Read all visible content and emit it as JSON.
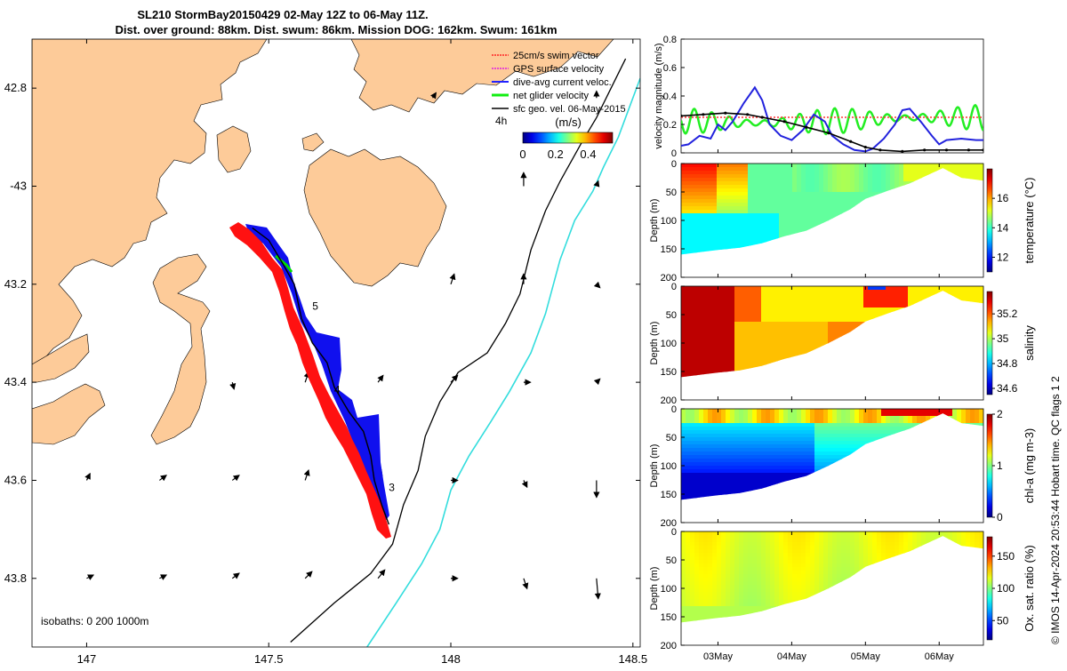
{
  "title_line1": "SL210 StormBay20150429 02-May 12Z to 06-May 11Z.",
  "title_line2": "Dist. over ground: 88km. Dist. swum: 86km. Mission DOG: 162km. Swum: 161km",
  "stamp": "© IMOS 14-Apr-2024 20:53:44 Hobart time. QC flags 1  2",
  "chart_data": [
    {
      "type": "map",
      "name": "glider track map",
      "xlim": [
        146.85,
        148.52
      ],
      "ylim": [
        -43.94,
        -42.7
      ],
      "x_ticks": [
        147,
        147.5,
        148,
        148.5
      ],
      "x_tick_labels": [
        "147",
        "147.5",
        "148",
        "148.5"
      ],
      "y_ticks": [
        -42.8,
        -43,
        -43.2,
        -43.4,
        -43.6,
        -43.8
      ],
      "y_tick_labels": [
        "42.8",
        "-43",
        "43.2",
        "43.4",
        "43.6",
        "43.8"
      ],
      "legend": [
        "25cm/s swim vector",
        "GPS surface velocity",
        "dive-avg current veloc.",
        "net glider velocity",
        "sfc geo. vel. 06-May-2015"
      ],
      "legend_scale_label": "4h",
      "colorbar": {
        "label": "(m/s)",
        "range": [
          0,
          0.55
        ],
        "ticks": [
          0,
          0.2,
          0.4
        ],
        "tick_labels": [
          "0",
          "0.2",
          "0.4"
        ]
      },
      "isobaths_label": "isobaths: 0   200  1000m",
      "track": [
        [
          147.455,
          -43.085
        ],
        [
          147.5,
          -43.11
        ],
        [
          147.54,
          -43.16
        ],
        [
          147.57,
          -43.2
        ],
        [
          147.59,
          -43.27
        ],
        [
          147.62,
          -43.32
        ],
        [
          147.66,
          -43.36
        ],
        [
          147.68,
          -43.41
        ],
        [
          147.72,
          -43.46
        ],
        [
          147.76,
          -43.5
        ],
        [
          147.78,
          -43.55
        ],
        [
          147.79,
          -43.6
        ],
        [
          147.81,
          -43.65
        ],
        [
          147.83,
          -43.69
        ]
      ],
      "day_markers": [
        {
          "label": "5",
          "lon": 147.61,
          "lat": -43.245
        },
        {
          "label": "4",
          "lon": 147.67,
          "lat": -43.415
        },
        {
          "label": "3",
          "lon": 147.82,
          "lat": -43.615
        }
      ],
      "isobath_200": [
        [
          147.56,
          -43.93
        ],
        [
          147.68,
          -43.85
        ],
        [
          147.78,
          -43.79
        ],
        [
          147.84,
          -43.73
        ],
        [
          147.87,
          -43.65
        ],
        [
          147.91,
          -43.58
        ],
        [
          147.93,
          -43.51
        ],
        [
          147.97,
          -43.44
        ],
        [
          148.02,
          -43.38
        ],
        [
          148.1,
          -43.34
        ],
        [
          148.15,
          -43.28
        ],
        [
          148.19,
          -43.22
        ],
        [
          148.22,
          -43.13
        ],
        [
          148.26,
          -43.05
        ],
        [
          148.3,
          -42.99
        ],
        [
          148.33,
          -42.95
        ],
        [
          148.36,
          -42.91
        ],
        [
          148.4,
          -42.86
        ],
        [
          148.44,
          -42.8
        ],
        [
          148.48,
          -42.74
        ]
      ],
      "isobath_1000": [
        [
          147.77,
          -43.94
        ],
        [
          147.85,
          -43.85
        ],
        [
          147.92,
          -43.77
        ],
        [
          147.97,
          -43.7
        ],
        [
          148.0,
          -43.62
        ],
        [
          148.05,
          -43.55
        ],
        [
          148.11,
          -43.48
        ],
        [
          148.16,
          -43.42
        ],
        [
          148.22,
          -43.34
        ],
        [
          148.26,
          -43.26
        ],
        [
          148.3,
          -43.15
        ],
        [
          148.34,
          -43.07
        ],
        [
          148.39,
          -43.01
        ],
        [
          148.42,
          -42.96
        ],
        [
          148.46,
          -42.9
        ],
        [
          148.49,
          -42.84
        ],
        [
          148.52,
          -42.78
        ]
      ],
      "geo_arrows": [
        {
          "lon": 147.0,
          "lat": -43.8,
          "u": 0.02,
          "v": 0.01
        },
        {
          "lon": 147.2,
          "lat": -43.8,
          "u": 0.02,
          "v": 0.01
        },
        {
          "lon": 147.4,
          "lat": -43.8,
          "u": 0.02,
          "v": 0.015
        },
        {
          "lon": 147.6,
          "lat": -43.8,
          "u": 0.02,
          "v": 0.02
        },
        {
          "lon": 147.8,
          "lat": -43.8,
          "u": 0.02,
          "v": 0.025
        },
        {
          "lon": 148.0,
          "lat": -43.8,
          "u": 0.02,
          "v": 0.0
        },
        {
          "lon": 148.2,
          "lat": -43.8,
          "u": 0.01,
          "v": -0.03
        },
        {
          "lon": 148.4,
          "lat": -43.8,
          "u": 0.005,
          "v": -0.06
        },
        {
          "lon": 147.0,
          "lat": -43.6,
          "u": 0.01,
          "v": 0.02
        },
        {
          "lon": 147.2,
          "lat": -43.6,
          "u": 0.02,
          "v": 0.015
        },
        {
          "lon": 147.4,
          "lat": -43.6,
          "u": 0.02,
          "v": 0.015
        },
        {
          "lon": 147.6,
          "lat": -43.6,
          "u": 0.01,
          "v": 0.03
        },
        {
          "lon": 147.8,
          "lat": -43.6,
          "u": 0.01,
          "v": 0.03
        },
        {
          "lon": 148.0,
          "lat": -43.6,
          "u": 0.02,
          "v": 0.0
        },
        {
          "lon": 148.2,
          "lat": -43.6,
          "u": 0.01,
          "v": -0.02
        },
        {
          "lon": 148.4,
          "lat": -43.6,
          "u": 0.0,
          "v": -0.05
        },
        {
          "lon": 147.4,
          "lat": -43.4,
          "u": 0.005,
          "v": -0.02
        },
        {
          "lon": 147.6,
          "lat": -43.4,
          "u": 0.01,
          "v": 0.03
        },
        {
          "lon": 147.8,
          "lat": -43.4,
          "u": 0.015,
          "v": 0.02
        },
        {
          "lon": 148.0,
          "lat": -43.4,
          "u": 0.02,
          "v": 0.02
        },
        {
          "lon": 148.2,
          "lat": -43.4,
          "u": 0.02,
          "v": 0.0
        },
        {
          "lon": 148.4,
          "lat": -43.4,
          "u": 0.01,
          "v": 0.01
        },
        {
          "lon": 148.0,
          "lat": -43.2,
          "u": 0.01,
          "v": 0.03
        },
        {
          "lon": 148.2,
          "lat": -43.2,
          "u": 0.0,
          "v": 0.03
        },
        {
          "lon": 148.4,
          "lat": -43.2,
          "u": 0.01,
          "v": -0.01
        },
        {
          "lon": 147.95,
          "lat": -42.82,
          "u": 0.01,
          "v": 0.015
        },
        {
          "lon": 148.2,
          "lat": -43.0,
          "u": 0.0,
          "v": 0.04
        },
        {
          "lon": 148.4,
          "lat": -43.0,
          "u": 0.005,
          "v": 0.015
        },
        {
          "lon": 148.4,
          "lat": -42.82,
          "u": 0.0,
          "v": 0.02
        }
      ]
    },
    {
      "type": "line",
      "name": "velocity magnitude",
      "ylabel": "velocity magnitude (m/s)",
      "ylim": [
        0,
        0.8
      ],
      "y_ticks": [
        0,
        0.2,
        0.4,
        0.6,
        0.8
      ],
      "y_tick_labels": [
        "0",
        "0.2",
        "0.4",
        "0.6",
        "0.8"
      ],
      "xlim": [
        2.5,
        6.6
      ],
      "series": [
        {
          "name": "25cm/s swim vector",
          "color": "#ff3333",
          "x": [
            2.5,
            6.6
          ],
          "y": [
            0.25,
            0.25
          ]
        },
        {
          "name": "dive-avg current veloc.",
          "color": "#2222dd",
          "x": [
            2.5,
            2.6,
            2.75,
            2.9,
            3.0,
            3.1,
            3.2,
            3.35,
            3.5,
            3.6,
            3.7,
            3.85,
            4.0,
            4.15,
            4.3,
            4.45,
            4.55,
            4.7,
            4.85,
            5.0,
            5.1,
            5.25,
            5.4,
            5.5,
            5.6,
            5.75,
            5.9,
            6.0,
            6.1,
            6.3,
            6.5,
            6.6
          ],
          "y": [
            0.05,
            0.06,
            0.12,
            0.1,
            0.2,
            0.16,
            0.22,
            0.35,
            0.46,
            0.37,
            0.2,
            0.12,
            0.09,
            0.16,
            0.27,
            0.22,
            0.12,
            0.06,
            0.02,
            0.01,
            0.03,
            0.1,
            0.2,
            0.3,
            0.31,
            0.22,
            0.12,
            0.06,
            0.09,
            0.1,
            0.09,
            0.09
          ]
        },
        {
          "name": "sfc geo. vel. 06-May-2015",
          "color": "#000000",
          "x": [
            2.5,
            2.8,
            3.1,
            3.4,
            3.6,
            3.9,
            4.2,
            4.5,
            4.8,
            5.0,
            5.2,
            5.5,
            5.8,
            6.1,
            6.4,
            6.6
          ],
          "y": [
            0.26,
            0.27,
            0.28,
            0.27,
            0.25,
            0.22,
            0.18,
            0.14,
            0.08,
            0.04,
            0.02,
            0.01,
            0.02,
            0.02,
            0.02,
            0.02
          ]
        }
      ]
    },
    {
      "type": "heatmap",
      "name": "temperature",
      "ylabel": "Depth (m)",
      "colorbar_label": "temperature (°C)",
      "clim": [
        11,
        18
      ],
      "c_ticks": [
        12,
        14,
        16
      ],
      "c_tick_labels": [
        "12",
        "14",
        "16"
      ],
      "y_ticks": [
        0,
        50,
        100,
        150,
        200
      ],
      "y_tick_labels": [
        "0",
        "50",
        "100",
        "150",
        "200"
      ]
    },
    {
      "type": "heatmap",
      "name": "salinity",
      "ylabel": "Depth (m)",
      "colorbar_label": "salinity",
      "clim": [
        34.55,
        35.38
      ],
      "c_ticks": [
        34.6,
        34.8,
        35,
        35.2
      ],
      "c_tick_labels": [
        "34.6",
        "34.8",
        "35",
        "35.2"
      ],
      "y_ticks": [
        0,
        50,
        100,
        150,
        200
      ],
      "y_tick_labels": [
        "0",
        "50",
        "100",
        "150",
        "200"
      ]
    },
    {
      "type": "heatmap",
      "name": "chl-a",
      "ylabel": "Depth (m)",
      "colorbar_label": "chl-a (mg m-3)",
      "clim": [
        0,
        2
      ],
      "c_ticks": [
        0,
        1,
        2
      ],
      "c_tick_labels": [
        "0",
        "1",
        "2"
      ],
      "y_ticks": [
        0,
        50,
        100,
        150,
        200
      ],
      "y_tick_labels": [
        "0",
        "50",
        "100",
        "150",
        "200"
      ]
    },
    {
      "type": "heatmap",
      "name": "oxygen saturation",
      "ylabel": "Depth (m)",
      "colorbar_label": "Ox. sat. ratio (%)",
      "clim": [
        20,
        180
      ],
      "c_ticks": [
        50,
        100,
        150
      ],
      "c_tick_labels": [
        "50",
        "100",
        "150"
      ],
      "y_ticks": [
        0,
        50,
        100,
        150,
        200
      ],
      "y_tick_labels": [
        "0",
        "50",
        "100",
        "150",
        "200"
      ],
      "x_ticks": [
        3,
        4,
        5,
        6
      ],
      "x_tick_labels": [
        "03May",
        "04May",
        "05May",
        "06May"
      ],
      "xlim": [
        2.5,
        6.6
      ]
    }
  ]
}
